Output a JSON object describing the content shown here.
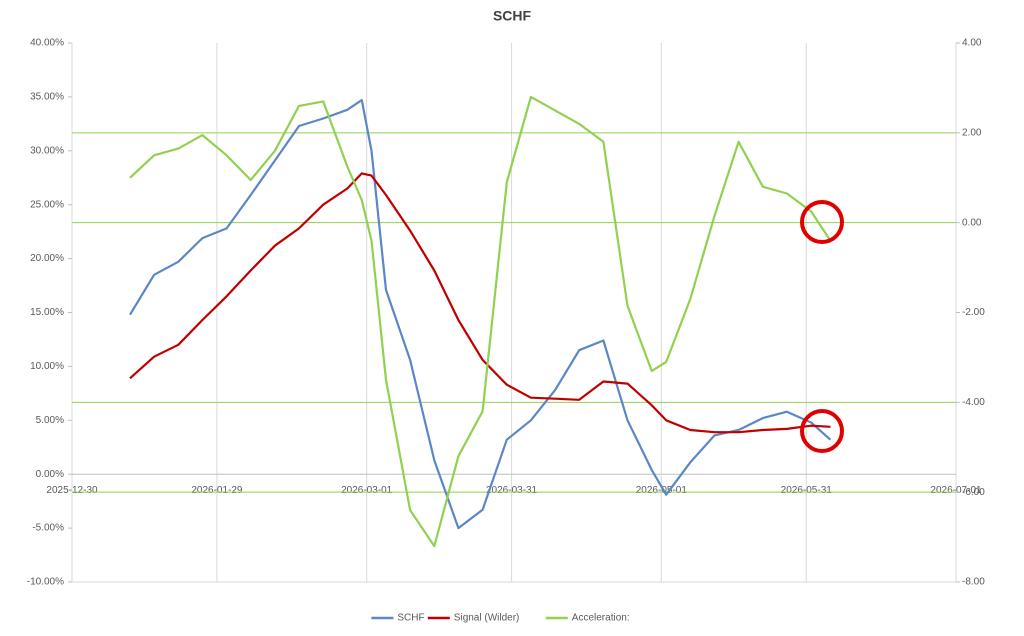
{
  "chart_data": {
    "type": "line",
    "title": "SCHF",
    "x": [
      "2026-01-11",
      "2026-01-16",
      "2026-01-21",
      "2026-01-26",
      "2026-01-31",
      "2026-02-05",
      "2026-02-10",
      "2026-02-15",
      "2026-02-20",
      "2026-02-25",
      "2026-02-28",
      "2026-03-02",
      "2026-03-05",
      "2026-03-10",
      "2026-03-15",
      "2026-03-20",
      "2026-03-25",
      "2026-03-30",
      "2026-04-04",
      "2026-04-09",
      "2026-04-14",
      "2026-04-19",
      "2026-04-24",
      "2026-04-29",
      "2026-05-02",
      "2026-05-07",
      "2026-05-12",
      "2026-05-17",
      "2026-05-22",
      "2026-05-27",
      "2026-06-01",
      "2026-06-05"
    ],
    "series": [
      {
        "name": "SCHF",
        "color": "#5b87c5",
        "values": [
          14.8,
          18.5,
          19.7,
          21.9,
          22.8,
          25.9,
          29.1,
          32.3,
          33.0,
          33.8,
          34.7,
          30.0,
          17.1,
          10.6,
          1.3,
          -5.0,
          -3.3,
          3.2,
          5.0,
          7.8,
          11.5,
          12.4,
          5.0,
          0.4,
          -1.9,
          1.1,
          3.6,
          4.1,
          5.2,
          5.8,
          4.8,
          3.2
        ]
      },
      {
        "name": "Signal (Wilder)",
        "color": "#c00000",
        "values": [
          8.9,
          10.9,
          12.0,
          14.3,
          16.5,
          18.9,
          21.2,
          22.8,
          25.0,
          26.5,
          27.9,
          27.7,
          25.9,
          22.6,
          18.9,
          14.3,
          10.6,
          8.3,
          7.1,
          7.0,
          6.9,
          8.6,
          8.4,
          6.4,
          5.0,
          4.1,
          3.9,
          3.9,
          4.1,
          4.2,
          4.5,
          4.4
        ]
      },
      {
        "name": "Acceleration:",
        "color": "#92d050",
        "axis": "y2",
        "values": [
          1.0,
          1.5,
          1.65,
          1.95,
          1.5,
          0.95,
          1.6,
          2.6,
          2.7,
          1.25,
          0.5,
          -0.4,
          -3.5,
          -6.4,
          -7.2,
          -5.2,
          -4.2,
          0.9,
          2.8,
          2.5,
          2.2,
          1.8,
          -1.85,
          -3.3,
          -3.1,
          -1.7,
          0.15,
          1.8,
          0.8,
          0.65,
          0.25,
          -0.4
        ]
      }
    ],
    "xlim": [
      "2025-12-30",
      "2026-07-01"
    ],
    "xticks": [
      "2025-12-30",
      "2026-01-29",
      "2026-03-01",
      "2026-03-31",
      "2026-05-01",
      "2026-05-31",
      "2026-07-01"
    ],
    "ylim": [
      -10,
      40
    ],
    "yticks": [
      {
        "value": -10,
        "label": "-10.00%"
      },
      {
        "value": -5,
        "label": "-5.00%"
      },
      {
        "value": 0,
        "label": "0.00%"
      },
      {
        "value": 5,
        "label": "5.00%"
      },
      {
        "value": 10,
        "label": "10.00%"
      },
      {
        "value": 15,
        "label": "15.00%"
      },
      {
        "value": 20,
        "label": "20.00%"
      },
      {
        "value": 25,
        "label": "25.00%"
      },
      {
        "value": 30,
        "label": "30.00%"
      },
      {
        "value": 35,
        "label": "35.00%"
      },
      {
        "value": 40,
        "label": "40.00%"
      }
    ],
    "y2lim": [
      -8,
      4
    ],
    "y2ticks": [
      {
        "value": -8,
        "label": "-8.00"
      },
      {
        "value": -6,
        "label": "-6.00"
      },
      {
        "value": -4,
        "label": "-4.00"
      },
      {
        "value": -2,
        "label": "-2.00"
      },
      {
        "value": 0,
        "label": "0.00"
      },
      {
        "value": 2,
        "label": "2.00"
      },
      {
        "value": 4,
        "label": "4.00"
      }
    ],
    "y2_reference_lines": [
      2,
      0,
      -4,
      -6
    ],
    "reference_color": "#92d050",
    "grid": true,
    "legend": "bottom"
  }
}
